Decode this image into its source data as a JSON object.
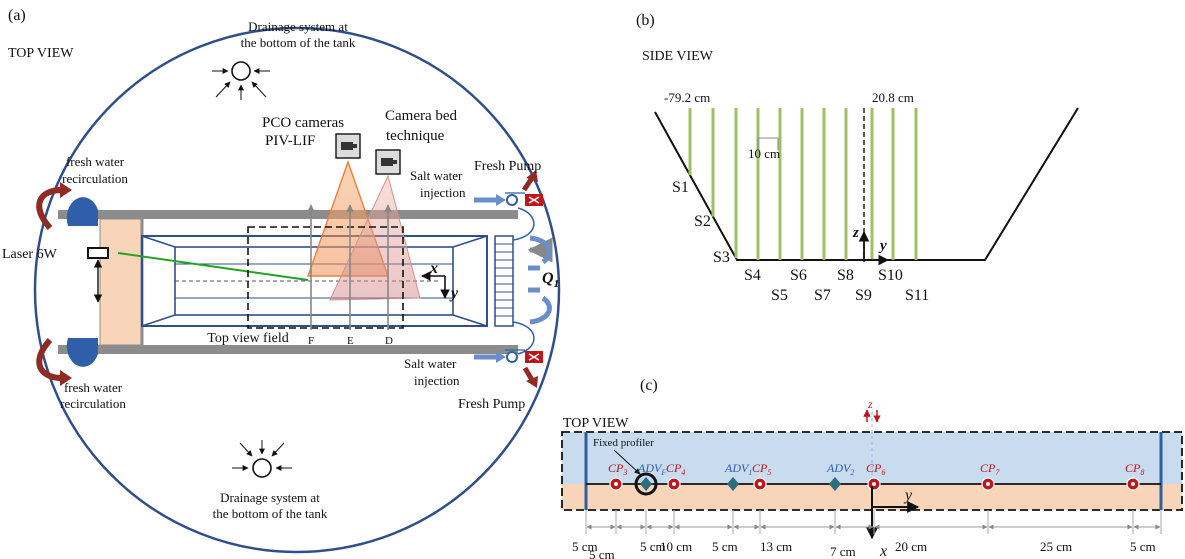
{
  "panel_a": {
    "label": "(a)",
    "view_title": "TOP VIEW",
    "drain_top_1": "Drainage system at",
    "drain_top_2": "the bottom of the tank",
    "drain_bottom_1": "Drainage system at",
    "drain_bottom_2": "the bottom of the tank",
    "pco_1": "PCO cameras",
    "pco_2": "PIV-LIF",
    "camera_bed_1": "Camera bed",
    "camera_bed_2": "technique",
    "fresh_recirc_1": "fresh water",
    "fresh_recirc_2": "recirculation",
    "fresh_pump_top": "Fresh Pump",
    "fresh_pump_bottom": "Fresh Pump",
    "salt_top_1": "Salt water",
    "salt_top_2": "injection",
    "salt_bottom_1": "Salt water",
    "salt_bottom_2": "injection",
    "laser": "Laser 6W",
    "top_view_field": "Top view field",
    "profile_f": "F",
    "profile_e": "E",
    "profile_d": "D",
    "axis_x": "x",
    "axis_y": "y",
    "q_label": "Q",
    "q_sub": "1"
  },
  "panel_b": {
    "label": "(b)",
    "view_title": "SIDE VIEW",
    "left_pos": "-79.2 cm",
    "right_pos": "20.8 cm",
    "spacing": "10 cm",
    "axis_z": "z",
    "axis_y": "y",
    "sections": [
      "S1",
      "S2",
      "S3",
      "S4",
      "S5",
      "S6",
      "S7",
      "S8",
      "S9",
      "S10",
      "S11"
    ]
  },
  "panel_c": {
    "label": "(c)",
    "view_title": "TOP VIEW",
    "fixed_profiler": "Fixed profiler",
    "axis_z": "z",
    "axis_y": "y",
    "axis_x": "x",
    "cp_prefix": "CP",
    "adv_prefix": "ADV",
    "probes": [
      {
        "base": "CP",
        "sub": "3"
      },
      {
        "base": "ADV",
        "sub": "F"
      },
      {
        "base": "CP",
        "sub": "4"
      },
      {
        "base": "ADV",
        "sub": "1"
      },
      {
        "base": "CP",
        "sub": "5"
      },
      {
        "base": "ADV",
        "sub": "2"
      },
      {
        "base": "CP",
        "sub": "6"
      },
      {
        "base": "CP",
        "sub": "7"
      },
      {
        "base": "CP",
        "sub": "8"
      }
    ],
    "dims": [
      "5 cm",
      "5 cm",
      "5 cm",
      "10 cm",
      "5 cm",
      "13 cm",
      "7 cm",
      "20 cm",
      "25 cm",
      "5 cm"
    ]
  },
  "colors": {
    "tank_wall": "#8c8c8c",
    "flume_blue": "#2f4f8a",
    "bed_orange": "#f8d4b8",
    "water_blue": "#c9dcef",
    "cp_red": "#c0151b",
    "adv_teal": "#2a6e80",
    "laser_green": "#1fa51f",
    "pump_red": "#c0151b",
    "recirc_red": "#8f2a25",
    "profile_green": "#9cc263"
  }
}
